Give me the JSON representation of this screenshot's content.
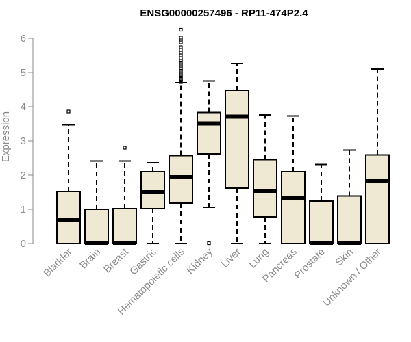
{
  "chart_data": {
    "type": "boxplot",
    "title": "ENSG00000257496 - RP11-474P2.4",
    "xlabel": "",
    "ylabel": "Expression",
    "ylim": [
      0,
      6
    ],
    "yticks": [
      0,
      1,
      2,
      3,
      4,
      5,
      6
    ],
    "grid": false,
    "box_fill": "#efe8d2",
    "box_stroke": "#000000",
    "tick_color": "#8a8a8a",
    "categories": [
      "Bladder",
      "Brain",
      "Breast",
      "Gastric",
      "Hematopoietic cells",
      "Kidney",
      "Liver",
      "Lung",
      "Pancreas",
      "Prostate",
      "Skin",
      "Unknown / Other"
    ],
    "boxes": [
      {
        "name": "Bladder",
        "whisker_low": 0,
        "q1": 0,
        "median": 0.68,
        "q3": 1.52,
        "whisker_high": 3.47,
        "outliers": [
          3.86
        ]
      },
      {
        "name": "Brain",
        "whisker_low": 0,
        "q1": 0,
        "median": 0.02,
        "q3": 1.0,
        "whisker_high": 2.41,
        "outliers": []
      },
      {
        "name": "Breast",
        "whisker_low": 0,
        "q1": 0,
        "median": 0.02,
        "q3": 1.02,
        "whisker_high": 2.41,
        "outliers": [
          2.8
        ]
      },
      {
        "name": "Gastric",
        "whisker_low": 0,
        "q1": 1.02,
        "median": 1.5,
        "q3": 2.1,
        "whisker_high": 2.36,
        "outliers": []
      },
      {
        "name": "Hematopoietic cells",
        "whisker_low": 0,
        "q1": 1.18,
        "median": 1.94,
        "q3": 2.57,
        "whisker_high": 4.7,
        "outliers": [
          4.72,
          4.74,
          4.76,
          4.78,
          4.8,
          4.82,
          4.85,
          4.88,
          4.9,
          4.93,
          4.96,
          5.0,
          5.03,
          5.06,
          5.1,
          5.13,
          5.17,
          5.2,
          5.24,
          5.28,
          5.32,
          5.37,
          5.42,
          5.5,
          5.58,
          5.66,
          5.74,
          5.88,
          5.96,
          6.02,
          6.25
        ]
      },
      {
        "name": "Kidney",
        "whisker_low": 1.06,
        "q1": 2.62,
        "median": 3.51,
        "q3": 3.83,
        "whisker_high": 4.75,
        "outliers": [
          0.01
        ]
      },
      {
        "name": "Liver",
        "whisker_low": 0,
        "q1": 1.62,
        "median": 3.71,
        "q3": 4.48,
        "whisker_high": 5.26,
        "outliers": []
      },
      {
        "name": "Lung",
        "whisker_low": 0,
        "q1": 0.78,
        "median": 1.54,
        "q3": 2.45,
        "whisker_high": 3.76,
        "outliers": []
      },
      {
        "name": "Pancreas",
        "whisker_low": 0,
        "q1": 0,
        "median": 1.32,
        "q3": 2.1,
        "whisker_high": 3.73,
        "outliers": []
      },
      {
        "name": "Prostate",
        "whisker_low": 0,
        "q1": 0,
        "median": 0.02,
        "q3": 1.24,
        "whisker_high": 2.31,
        "outliers": []
      },
      {
        "name": "Skin",
        "whisker_low": 0,
        "q1": 0,
        "median": 0.02,
        "q3": 1.39,
        "whisker_high": 2.73,
        "outliers": []
      },
      {
        "name": "Unknown / Other",
        "whisker_low": 0,
        "q1": 0,
        "median": 1.82,
        "q3": 2.59,
        "whisker_high": 5.1,
        "outliers": []
      }
    ]
  }
}
